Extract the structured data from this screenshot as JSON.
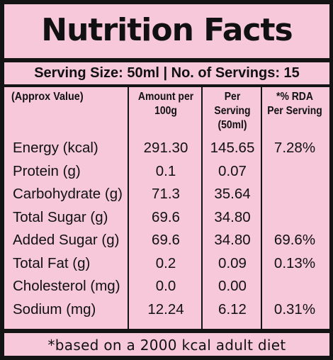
{
  "title": "Nutrition Facts",
  "serving_line": "Serving Size: 50ml  |  No. of Servings: 15",
  "headers": {
    "nutrient": "(Approx Value)",
    "amount_line1": "Amount per",
    "amount_line2": "100g",
    "per_serving_line1": "Per Serving",
    "per_serving_line2": "(50ml)",
    "rda_line1": "*% RDA",
    "rda_line2": "Per Serving"
  },
  "rows": [
    {
      "name": "Energy (kcal)",
      "per100": "291.30",
      "per_serving": "145.65",
      "rda": "7.28%"
    },
    {
      "name": "Protein (g)",
      "per100": "0.1",
      "per_serving": "0.07",
      "rda": ""
    },
    {
      "name": "Carbohydrate (g)",
      "per100": "71.3",
      "per_serving": "35.64",
      "rda": ""
    },
    {
      "name": "Total Sugar (g)",
      "per100": "69.6",
      "per_serving": "34.80",
      "rda": ""
    },
    {
      "name": "Added Sugar (g)",
      "per100": "69.6",
      "per_serving": "34.80",
      "rda": "69.6%"
    },
    {
      "name": "Total Fat (g)",
      "per100": "0.2",
      "per_serving": "0.09",
      "rda": "0.13%"
    },
    {
      "name": "Cholesterol (mg)",
      "per100": "0.0",
      "per_serving": "0.00",
      "rda": ""
    },
    {
      "name": "Sodium (mg)",
      "per100": "12.24",
      "per_serving": "6.12",
      "rda": "0.31%"
    }
  ],
  "footer": "*based on a 2000 kcal adult diet",
  "colors": {
    "background": "#f6c8da",
    "ink": "#141414"
  }
}
